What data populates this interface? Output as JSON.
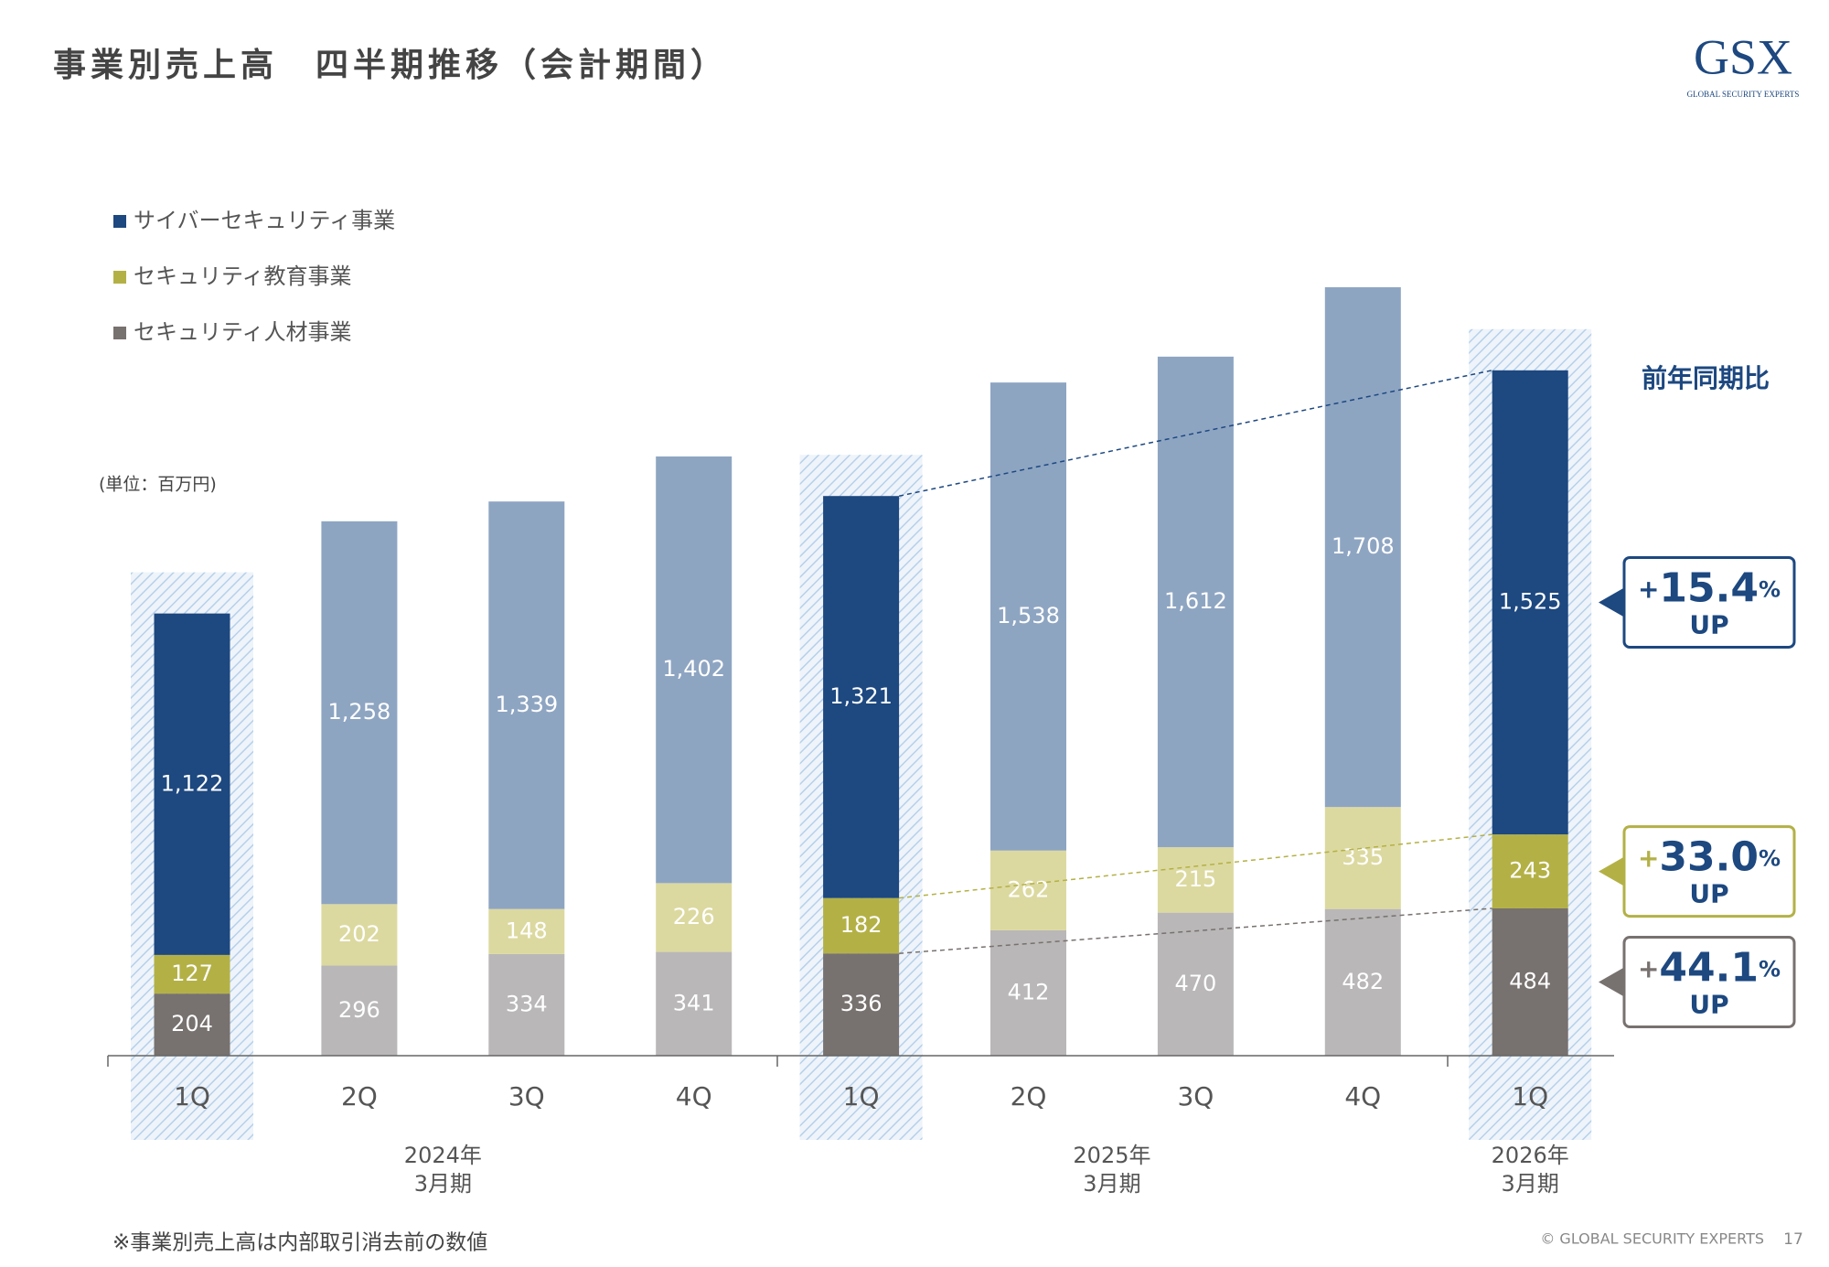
{
  "header": {
    "title": "事業別売上高　四半期推移（会計期間）",
    "logo": "GSX",
    "logo_sub": "GLOBAL SECURITY EXPERTS"
  },
  "chart_data": {
    "type": "stacked_bar",
    "unit_label": "(単位：百万円)",
    "categories": [
      "1Q",
      "2Q",
      "3Q",
      "4Q",
      "1Q",
      "2Q",
      "3Q",
      "4Q",
      "1Q"
    ],
    "groups": [
      [
        "2024年",
        "3月期"
      ],
      [
        "2025年",
        "3月期"
      ],
      [
        "2026年",
        "3月期"
      ]
    ],
    "highlighted_categories": [
      0,
      4,
      8
    ],
    "series": [
      {
        "name": "サイバーセキュリティ事業",
        "color": "#1d4880",
        "light_color": "#8ea5c2",
        "values": [
          1122,
          1258,
          1339,
          1402,
          1321,
          1538,
          1612,
          1708,
          1525
        ],
        "value_labels": [
          "1,122",
          "1,258",
          "1,339",
          "1,402",
          "1,321",
          "1,538",
          "1,612",
          "1,708",
          "1,525"
        ]
      },
      {
        "name": "セキュリティ教育事業",
        "color": "#b3b146",
        "light_color": "#dcd9a0",
        "values": [
          127,
          202,
          148,
          226,
          182,
          262,
          215,
          335,
          243
        ]
      },
      {
        "name": "セキュリティ人材事業",
        "color": "#77716f",
        "light_color": "#b9b7b7",
        "values": [
          204,
          296,
          334,
          341,
          336,
          412,
          470,
          482,
          484
        ]
      }
    ],
    "comparison_title": "前年同期比",
    "callouts": [
      {
        "sign": "+",
        "value": "15.4",
        "unit": "%",
        "text": "UP",
        "border": "#1d4880"
      },
      {
        "sign": "+",
        "value": "33.0",
        "unit": "%",
        "text": "UP",
        "border": "#b3b146"
      },
      {
        "sign": "+",
        "value": "44.1",
        "unit": "%",
        "text": "UP",
        "border": "#77716f"
      }
    ]
  },
  "footer": {
    "note": "※事業別売上高は内部取引消去前の数値",
    "copyright": "© GLOBAL SECURITY EXPERTS",
    "page": "17"
  }
}
